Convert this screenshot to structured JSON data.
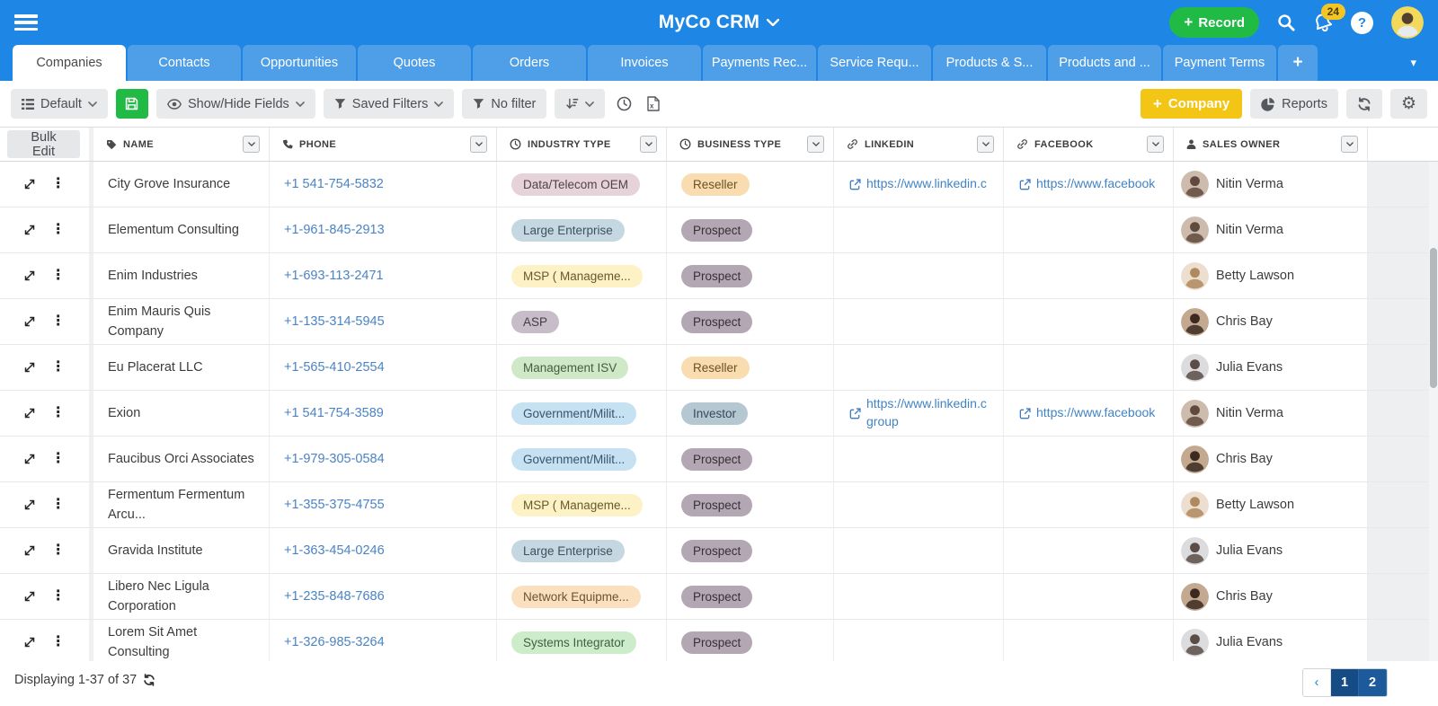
{
  "app": {
    "title": "MyCo CRM"
  },
  "topbar": {
    "record_button_label": "Record",
    "notification_count": "24",
    "help_label": "?"
  },
  "tabs": {
    "items": [
      "Companies",
      "Contacts",
      "Opportunities",
      "Quotes",
      "Orders",
      "Invoices",
      "Payments Rec...",
      "Service Requ...",
      "Products & S...",
      "Products and ...",
      "Payment Terms"
    ],
    "active_index": 0,
    "add_tab_label": "+"
  },
  "toolbar": {
    "view_selector_label": "Default",
    "show_hide_fields_label": "Show/Hide Fields",
    "saved_filters_label": "Saved Filters",
    "no_filter_label": "No filter",
    "add_company_label": "Company",
    "reports_label": "Reports"
  },
  "table": {
    "bulk_edit_label": "Bulk Edit",
    "columns": [
      {
        "label": "NAME",
        "icon": "tag-icon",
        "width_class": "c-name"
      },
      {
        "label": "PHONE",
        "icon": "phone-icon",
        "width_class": "c-phone"
      },
      {
        "label": "INDUSTRY TYPE",
        "icon": "clock-icon",
        "width_class": "c-ind"
      },
      {
        "label": "BUSINESS TYPE",
        "icon": "clock-icon",
        "width_class": "c-bus"
      },
      {
        "label": "LINKEDIN",
        "icon": "link-icon",
        "width_class": "c-li"
      },
      {
        "label": "FACEBOOK",
        "icon": "link-icon",
        "width_class": "c-fb"
      },
      {
        "label": "SALES OWNER",
        "icon": "person-icon",
        "width_class": "c-own"
      }
    ],
    "rows": [
      {
        "name": "City Grove Insurance",
        "phone": "+1 541-754-5832",
        "industry": "Data/Telecom OEM",
        "business": "Reseller",
        "linkedin": [
          "https://www.linkedin.c"
        ],
        "facebook": "https://www.facebook",
        "owner": "Nitin Verma"
      },
      {
        "name": "Elementum Consulting",
        "phone": "+1-961-845-2913",
        "industry": "Large Enterprise",
        "business": "Prospect",
        "linkedin": null,
        "facebook": null,
        "owner": "Nitin Verma"
      },
      {
        "name": "Enim Industries",
        "phone": "+1-693-113-2471",
        "industry": "MSP ( Manageme...",
        "business": "Prospect",
        "linkedin": null,
        "facebook": null,
        "owner": "Betty Lawson"
      },
      {
        "name": "Enim Mauris Quis Company",
        "phone": "+1-135-314-5945",
        "industry": "ASP",
        "business": "Prospect",
        "linkedin": null,
        "facebook": null,
        "owner": "Chris Bay"
      },
      {
        "name": "Eu Placerat LLC",
        "phone": "+1-565-410-2554",
        "industry": "Management ISV",
        "business": "Reseller",
        "linkedin": null,
        "facebook": null,
        "owner": "Julia Evans"
      },
      {
        "name": "Exion",
        "phone": "+1 541-754-3589",
        "industry": "Government/Milit...",
        "business": "Investor",
        "linkedin": [
          "https://www.linkedin.c",
          "group"
        ],
        "facebook": "https://www.facebook",
        "owner": "Nitin Verma"
      },
      {
        "name": "Faucibus Orci Associates",
        "phone": "+1-979-305-0584",
        "industry": "Government/Milit...",
        "business": "Prospect",
        "linkedin": null,
        "facebook": null,
        "owner": "Chris Bay"
      },
      {
        "name": "Fermentum Fermentum Arcu...",
        "phone": "+1-355-375-4755",
        "industry": "MSP ( Manageme...",
        "business": "Prospect",
        "linkedin": null,
        "facebook": null,
        "owner": "Betty Lawson"
      },
      {
        "name": "Gravida Institute",
        "phone": "+1-363-454-0246",
        "industry": "Large Enterprise",
        "business": "Prospect",
        "linkedin": null,
        "facebook": null,
        "owner": "Julia Evans"
      },
      {
        "name": "Libero Nec Ligula Corporation",
        "phone": "+1-235-848-7686",
        "industry": "Network Equipme...",
        "business": "Prospect",
        "linkedin": null,
        "facebook": null,
        "owner": "Chris Bay"
      },
      {
        "name": "Lorem Sit Amet Consulting",
        "phone": "+1-326-985-3264",
        "industry": "Systems Integrator",
        "business": "Prospect",
        "linkedin": null,
        "facebook": null,
        "owner": "Julia Evans"
      }
    ]
  },
  "pill_colors": {
    "Data/Telecom OEM": {
      "bg": "#e6d2d9",
      "fg": "#53424b"
    },
    "Large Enterprise": {
      "bg": "#c5d8e2",
      "fg": "#3c535f"
    },
    "MSP ( Manageme...": {
      "bg": "#fdf1c6",
      "fg": "#68592b"
    },
    "ASP": {
      "bg": "#c7bdc8",
      "fg": "#453c48"
    },
    "Management ISV": {
      "bg": "#cfe9c8",
      "fg": "#41603b"
    },
    "Government/Milit...": {
      "bg": "#c6e1f2",
      "fg": "#38536b"
    },
    "Network Equipme...": {
      "bg": "#fbe0c0",
      "fg": "#6b5430"
    },
    "Systems Integrator": {
      "bg": "#cdecca",
      "fg": "#3e6140"
    },
    "Reseller": {
      "bg": "#f9ddb0",
      "fg": "#6b5222"
    },
    "Prospect": {
      "bg": "#b4a7b4",
      "fg": "#382f39"
    },
    "Investor": {
      "bg": "#b5c8d2",
      "fg": "#33485a"
    }
  },
  "avatar_colors": {
    "Nitin Verma": {
      "bg": "#cdbcae",
      "fg": "#5f4a3d"
    },
    "Betty Lawson": {
      "bg": "#ecdfd0",
      "fg": "#b08a5e"
    },
    "Chris Bay": {
      "bg": "#c2a98f",
      "fg": "#3c2a22"
    },
    "Julia Evans": {
      "bg": "#dcdcde",
      "fg": "#5a4c47"
    }
  },
  "brand_colors": {
    "header_blue": "#1e87e5",
    "tab_inactive_blue": "#4f9fe8",
    "record_green": "#21ba45",
    "company_yellow": "#f3c514",
    "badge_yellow": "#f5c524",
    "link_blue": "#4183c4",
    "pagination_blue": "#1d5a9b"
  },
  "glyphs": {
    "kebab": "⋮",
    "gear": "⚙",
    "caret_down": "▾",
    "chevron_left": "‹"
  },
  "footer": {
    "status": "Displaying 1-37 of 37",
    "pages": [
      "1",
      "2"
    ],
    "active_page": "1"
  }
}
